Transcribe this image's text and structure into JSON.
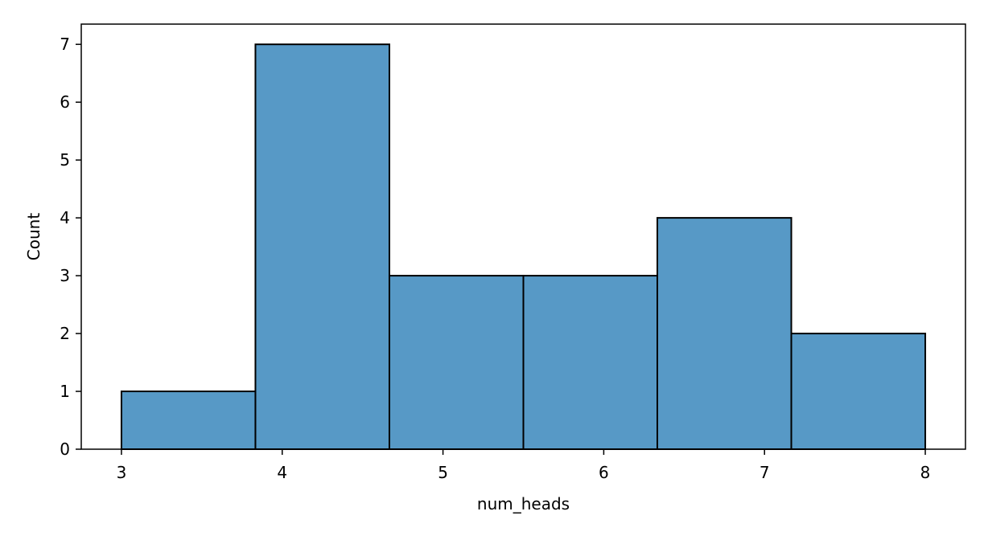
{
  "chart_data": {
    "type": "bar",
    "title": "",
    "xlabel": "num_heads",
    "ylabel": "Count",
    "bins": [
      {
        "x0": 3.0,
        "x1": 3.8333,
        "count": 1
      },
      {
        "x0": 3.8333,
        "x1": 4.6667,
        "count": 7
      },
      {
        "x0": 4.6667,
        "x1": 5.5,
        "count": 3
      },
      {
        "x0": 5.5,
        "x1": 6.3333,
        "count": 3
      },
      {
        "x0": 6.3333,
        "x1": 7.1667,
        "count": 4
      },
      {
        "x0": 7.1667,
        "x1": 8.0,
        "count": 2
      }
    ],
    "xlim": [
      2.75,
      8.25
    ],
    "ylim": [
      0,
      7.35
    ],
    "xticks": [
      3,
      4,
      5,
      6,
      7,
      8
    ],
    "yticks": [
      0,
      1,
      2,
      3,
      4,
      5,
      6,
      7
    ],
    "grid": false,
    "legend": "none",
    "bar_color": "#5799c6",
    "edge_color": "#000000"
  }
}
